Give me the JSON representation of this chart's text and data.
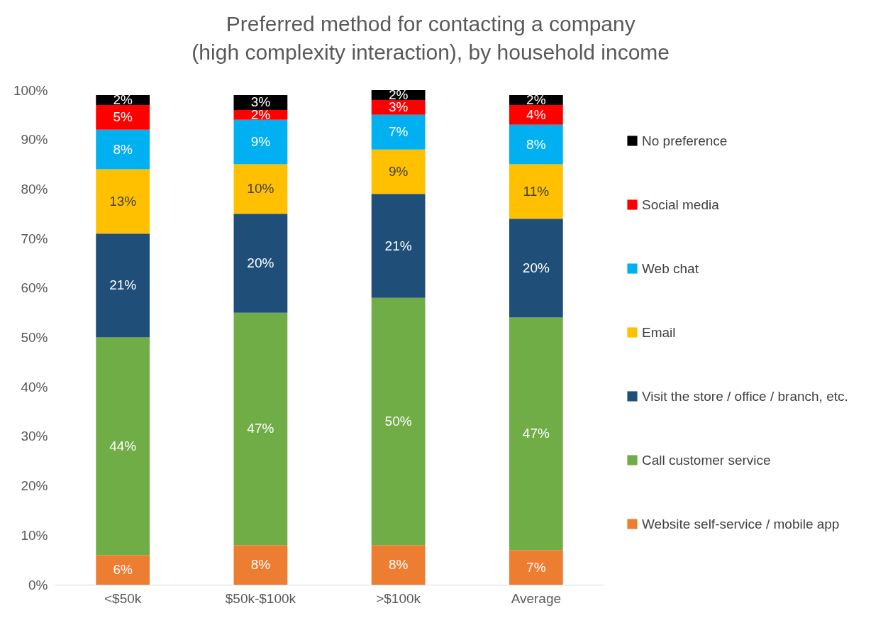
{
  "chart_data": {
    "type": "bar",
    "stacked": true,
    "title": "Preferred method for contacting a company\n(high complexity interaction), by household income",
    "categories": [
      "<$50k",
      "$50k-$100k",
      ">$100k",
      "Average"
    ],
    "ylim": [
      0,
      100
    ],
    "yticks": [
      {
        "value": 0,
        "label": "0%"
      },
      {
        "value": 10,
        "label": "10%"
      },
      {
        "value": 20,
        "label": "20%"
      },
      {
        "value": 30,
        "label": "30%"
      },
      {
        "value": 40,
        "label": "40%"
      },
      {
        "value": 50,
        "label": "50%"
      },
      {
        "value": 60,
        "label": "60%"
      },
      {
        "value": 70,
        "label": "70%"
      },
      {
        "value": 80,
        "label": "80%"
      },
      {
        "value": 90,
        "label": "90%"
      },
      {
        "value": 100,
        "label": "100%"
      }
    ],
    "grid": false,
    "legend": "right",
    "series": [
      {
        "name": "Website self-service / mobile app",
        "color": "#ed7d31",
        "values": [
          6,
          8,
          8,
          7
        ],
        "value_labels": [
          "6%",
          "8%",
          "8%",
          "7%"
        ]
      },
      {
        "name": "Call customer service",
        "color": "#70ad47",
        "values": [
          44,
          47,
          50,
          47
        ],
        "value_labels": [
          "44%",
          "47%",
          "50%",
          "47%"
        ]
      },
      {
        "name": "Visit the store / office / branch, etc.",
        "color": "#1f4e79",
        "values": [
          21,
          20,
          21,
          20
        ],
        "value_labels": [
          "21%",
          "20%",
          "21%",
          "20%"
        ]
      },
      {
        "name": "Email",
        "color": "#ffc000",
        "values": [
          13,
          10,
          9,
          11
        ],
        "value_labels": [
          "13%",
          "10%",
          "9%",
          "11%"
        ]
      },
      {
        "name": "Web chat",
        "color": "#00b0f0",
        "values": [
          8,
          9,
          7,
          8
        ],
        "value_labels": [
          "8%",
          "9%",
          "7%",
          "8%"
        ]
      },
      {
        "name": "Social media",
        "color": "#ff0000",
        "values": [
          5,
          2,
          3,
          4
        ],
        "value_labels": [
          "5%",
          "2%",
          "3%",
          "4%"
        ]
      },
      {
        "name": "No preference",
        "color": "#000000",
        "values": [
          2,
          3,
          2,
          2
        ],
        "value_labels": [
          "2%",
          "3%",
          "2%",
          "2%"
        ]
      }
    ]
  }
}
